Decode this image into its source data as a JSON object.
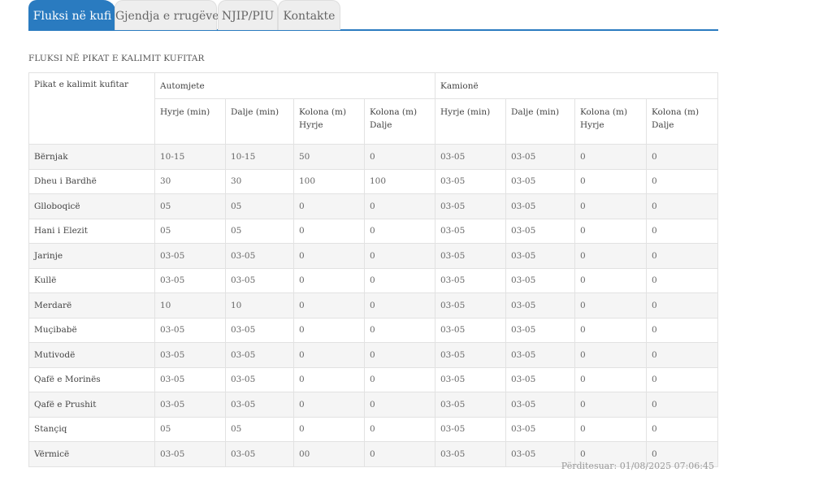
{
  "tabs": [
    {
      "label": "Fluksi në kufi",
      "active": true
    },
    {
      "label": "Gjendja e rrugëve",
      "active": false
    },
    {
      "label": "NJIP/PIU",
      "active": false
    },
    {
      "label": "Kontakte",
      "active": false
    }
  ],
  "caption": "FLUKSI NË PIKAT E KALIMIT KUFITAR",
  "table": {
    "col_point": "Pikat e kalimit kufitar",
    "group_cars": "Automjete",
    "group_trucks": "Kamionë",
    "sub": [
      "Hyrje (min)",
      "Dalje (min)",
      "Kolona (m) Hyrje",
      "Kolona (m) Dalje",
      "Hyrje (min)",
      "Dalje (min)",
      "Kolona (m) Hyrje",
      "Kolona (m) Dalje"
    ],
    "rows": [
      [
        "Bërnjak",
        "10-15",
        "10-15",
        "50",
        "0",
        "03-05",
        "03-05",
        "0",
        "0"
      ],
      [
        "Dheu i Bardhë",
        "30",
        "30",
        "100",
        "100",
        "03-05",
        "03-05",
        "0",
        "0"
      ],
      [
        "Glloboqicë",
        "05",
        "05",
        "0",
        "0",
        "03-05",
        "03-05",
        "0",
        "0"
      ],
      [
        "Hani i Elezit",
        "05",
        "05",
        "0",
        "0",
        "03-05",
        "03-05",
        "0",
        "0"
      ],
      [
        "Jarinje",
        "03-05",
        "03-05",
        "0",
        "0",
        "03-05",
        "03-05",
        "0",
        "0"
      ],
      [
        "Kullë",
        "03-05",
        "03-05",
        "0",
        "0",
        "03-05",
        "03-05",
        "0",
        "0"
      ],
      [
        "Merdarë",
        "10",
        "10",
        "0",
        "0",
        "03-05",
        "03-05",
        "0",
        "0"
      ],
      [
        "Muçibabë",
        "03-05",
        "03-05",
        "0",
        "0",
        "03-05",
        "03-05",
        "0",
        "0"
      ],
      [
        "Mutivodë",
        "03-05",
        "03-05",
        "0",
        "0",
        "03-05",
        "03-05",
        "0",
        "0"
      ],
      [
        "Qafë e Morinës",
        "03-05",
        "03-05",
        "0",
        "0",
        "03-05",
        "03-05",
        "0",
        "0"
      ],
      [
        "Qafë e Prushit",
        "03-05",
        "03-05",
        "0",
        "0",
        "03-05",
        "03-05",
        "0",
        "0"
      ],
      [
        "Stançiq",
        "05",
        "05",
        "0",
        "0",
        "03-05",
        "03-05",
        "0",
        "0"
      ],
      [
        "Vërmicë",
        "03-05",
        "03-05",
        "00",
        "0",
        "03-05",
        "03-05",
        "0",
        "0"
      ]
    ]
  },
  "updated": "Përditesuar: 01/08/2025 07:06:45",
  "colors": {
    "accent": "#2a7bc0",
    "row_alt": "#f5f5f5",
    "border": "#e2e2e2"
  }
}
